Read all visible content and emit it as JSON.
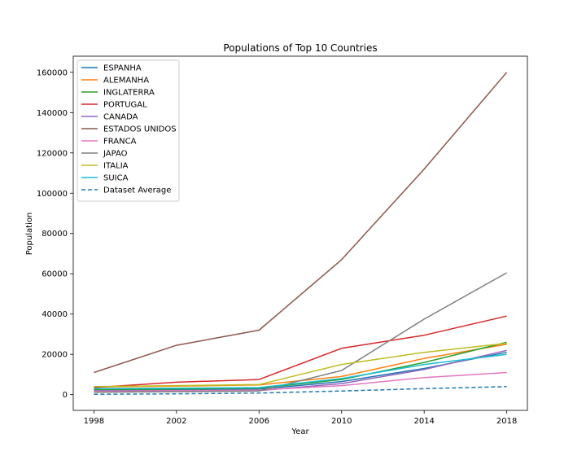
{
  "chart_data": {
    "type": "line",
    "title": "Populations of Top 10 Countries",
    "xlabel": "Year",
    "ylabel": "Population",
    "x": [
      1998,
      2002,
      2006,
      2010,
      2014,
      2018
    ],
    "xlim": [
      1997,
      2019
    ],
    "ylim": [
      -7800,
      168000
    ],
    "yticks": [
      0,
      20000,
      40000,
      60000,
      80000,
      100000,
      120000,
      140000,
      160000
    ],
    "grid": false,
    "legend_position": "top-left",
    "series": [
      {
        "name": "ESPANHA",
        "color": "#1f77b4",
        "values": [
          2200,
          2400,
          2700,
          6500,
          13000,
          21000
        ]
      },
      {
        "name": "ALEMANHA",
        "color": "#ff7f0e",
        "values": [
          3800,
          4200,
          4800,
          9000,
          18000,
          25000
        ]
      },
      {
        "name": "INGLATERRA",
        "color": "#2ca02c",
        "values": [
          2500,
          2800,
          3200,
          7500,
          16000,
          26000
        ]
      },
      {
        "name": "PORTUGAL",
        "color": "#d62728",
        "values": [
          3500,
          6200,
          7500,
          23000,
          29500,
          39000
        ]
      },
      {
        "name": "CANADA",
        "color": "#9467bd",
        "values": [
          1500,
          1700,
          2000,
          5500,
          12500,
          22000
        ]
      },
      {
        "name": "ESTADOS UNIDOS",
        "color": "#8c564b",
        "values": [
          11000,
          24500,
          32000,
          67000,
          112000,
          160000
        ]
      },
      {
        "name": "FRANCA",
        "color": "#e377c2",
        "values": [
          1800,
          2000,
          2300,
          4500,
          8500,
          11000
        ]
      },
      {
        "name": "JAPAO",
        "color": "#7f7f7f",
        "values": [
          1200,
          1500,
          1800,
          12000,
          37500,
          60500
        ]
      },
      {
        "name": "ITALIA",
        "color": "#bcbd22",
        "values": [
          4000,
          4500,
          5000,
          15000,
          21000,
          25500
        ]
      },
      {
        "name": "SUICA",
        "color": "#17becf",
        "values": [
          3000,
          3200,
          3500,
          8000,
          15000,
          20000
        ]
      },
      {
        "name": "Dataset Average",
        "color": "#1f77b4",
        "dashed": true,
        "values": [
          200,
          400,
          800,
          1800,
          3000,
          4000
        ]
      }
    ]
  }
}
